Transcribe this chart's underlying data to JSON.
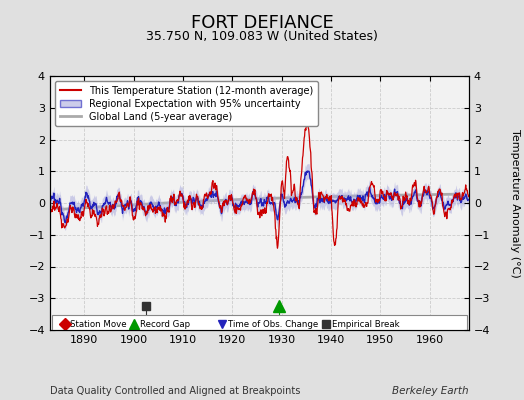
{
  "title": "FORT DEFIANCE",
  "subtitle": "35.750 N, 109.083 W (United States)",
  "xlabel_bottom": "Data Quality Controlled and Aligned at Breakpoints",
  "xlabel_right": "Berkeley Earth",
  "ylabel": "Temperature Anomaly (°C)",
  "xmin": 1883,
  "xmax": 1968,
  "ymin": -4,
  "ymax": 4,
  "yticks": [
    -4,
    -3,
    -2,
    -1,
    0,
    1,
    2,
    3,
    4
  ],
  "xticks": [
    1890,
    1900,
    1910,
    1920,
    1930,
    1940,
    1950,
    1960
  ],
  "bg_color": "#e0e0e0",
  "plot_bg_color": "#f2f2f2",
  "station_color": "#cc0000",
  "regional_color": "#2222bb",
  "regional_fill_color": "#aaaadd",
  "global_color": "#aaaaaa",
  "grid_color": "#cccccc",
  "empirical_break_x": 1902.5,
  "record_gap_x": 1929.5,
  "marker_y": -3.25,
  "seed": 12345
}
